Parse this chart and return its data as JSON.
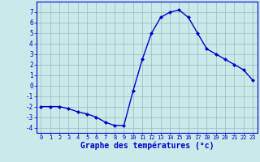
{
  "hours": [
    0,
    1,
    2,
    3,
    4,
    5,
    6,
    7,
    8,
    9,
    10,
    11,
    12,
    13,
    14,
    15,
    16,
    17,
    18,
    19,
    20,
    21,
    22,
    23
  ],
  "temperatures": [
    -2,
    -2,
    -2,
    -2.2,
    -2.5,
    -2.7,
    -3,
    -3.5,
    -3.8,
    -3.8,
    -0.5,
    2.5,
    5,
    6.5,
    7,
    7.2,
    6.5,
    5,
    3.5,
    3,
    2.5,
    2,
    1.5,
    0.5
  ],
  "line_color": "#0000cc",
  "marker": "D",
  "marker_size": 2.0,
  "bg_color": "#c8eaea",
  "grid_color": "#a0b8b8",
  "title": "Graphe des températures (°c)",
  "xlim": [
    -0.5,
    23.5
  ],
  "ylim": [
    -4.5,
    8.0
  ],
  "yticks": [
    -4,
    -3,
    -2,
    -1,
    0,
    1,
    2,
    3,
    4,
    5,
    6,
    7
  ],
  "xticks": [
    0,
    1,
    2,
    3,
    4,
    5,
    6,
    7,
    8,
    9,
    10,
    11,
    12,
    13,
    14,
    15,
    16,
    17,
    18,
    19,
    20,
    21,
    22,
    23
  ],
  "title_color": "#0000cc",
  "axis_color": "#0000cc",
  "tick_color": "#0000cc",
  "linewidth": 1.0,
  "xlabel_fontsize": 7.0,
  "tick_fontsize": 5.5,
  "xtick_fontsize": 5.0
}
